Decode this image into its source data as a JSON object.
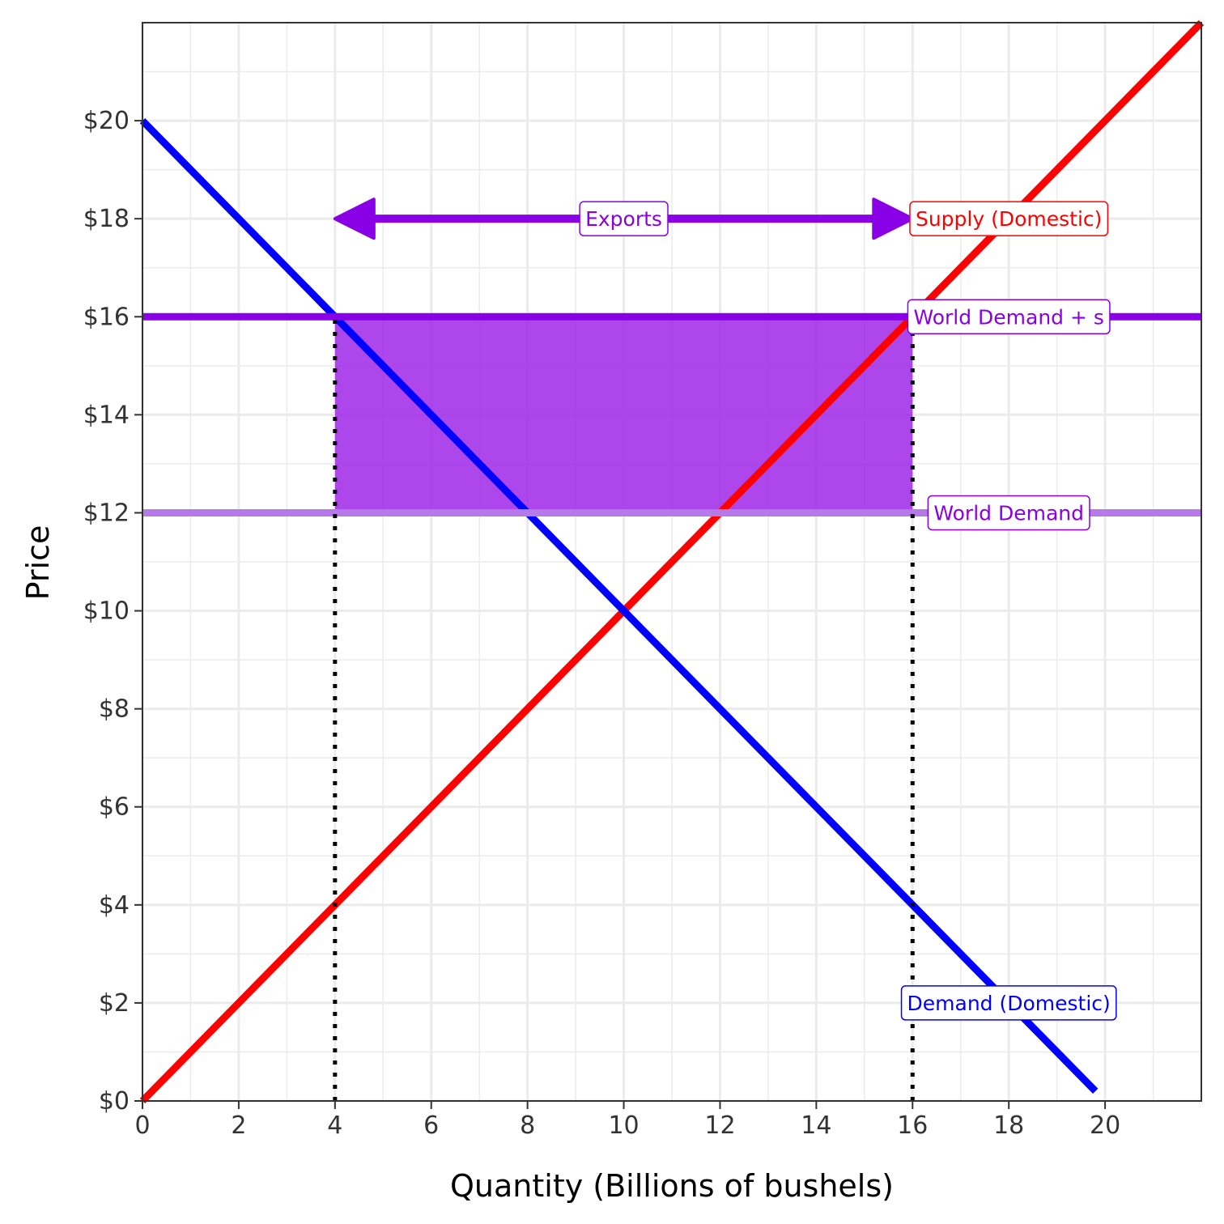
{
  "chart_data": {
    "type": "line",
    "xlabel": "Quantity (Billions of bushels)",
    "ylabel": "Price",
    "xlim": [
      0,
      22
    ],
    "ylim": [
      0,
      22
    ],
    "x_ticks": [
      0,
      2,
      4,
      6,
      8,
      10,
      12,
      14,
      16,
      18,
      20
    ],
    "x_tick_labels": [
      "0",
      "2",
      "4",
      "6",
      "8",
      "10",
      "12",
      "14",
      "16",
      "18",
      "20"
    ],
    "y_ticks": [
      0,
      2,
      4,
      6,
      8,
      10,
      12,
      14,
      16,
      18,
      20
    ],
    "y_tick_labels": [
      "$0",
      "$2",
      "$4",
      "$6",
      "$8",
      "$10",
      "$12",
      "$14",
      "$16",
      "$18",
      "$20"
    ],
    "grid": true,
    "series": [
      {
        "name": "Supply (Domestic)",
        "color": "#ff0000",
        "x": [
          0,
          22
        ],
        "y": [
          0,
          22
        ]
      },
      {
        "name": "Demand (Domestic)",
        "color": "#0000ff",
        "x": [
          0,
          19.8
        ],
        "y": [
          20,
          0.2
        ]
      },
      {
        "name": "World Demand + s",
        "color": "#8a00e6",
        "x": [
          0,
          22
        ],
        "y": [
          16,
          16
        ]
      },
      {
        "name": "World Demand",
        "color": "#b57ae8",
        "x": [
          0,
          22
        ],
        "y": [
          12,
          12
        ]
      }
    ],
    "shaded_region": {
      "x": [
        4,
        16
      ],
      "y": [
        12,
        16
      ],
      "color": "#9b1fe8"
    },
    "reference_lines": [
      {
        "x": 4,
        "y_from": 0,
        "y_to": 16,
        "style": "dotted",
        "color": "#000000"
      },
      {
        "x": 16,
        "y_from": 0,
        "y_to": 16,
        "style": "dotted",
        "color": "#000000"
      }
    ],
    "arrow": {
      "label": "Exports",
      "x_from": 4,
      "x_to": 16,
      "y": 18,
      "color": "#8a00e6"
    },
    "annotations": [
      {
        "text": "Exports",
        "x": 10,
        "y": 18,
        "color": "#8a00e6"
      },
      {
        "text": "Supply (Domestic)",
        "x": 18,
        "y": 18,
        "color": "#ff0000"
      },
      {
        "text": "World Demand + s",
        "x": 18,
        "y": 16,
        "color": "#8a00e6"
      },
      {
        "text": "World Demand",
        "x": 18,
        "y": 12,
        "color": "#8a00e6"
      },
      {
        "text": "Demand (Domestic)",
        "x": 18,
        "y": 2,
        "color": "#0000ff"
      }
    ]
  }
}
